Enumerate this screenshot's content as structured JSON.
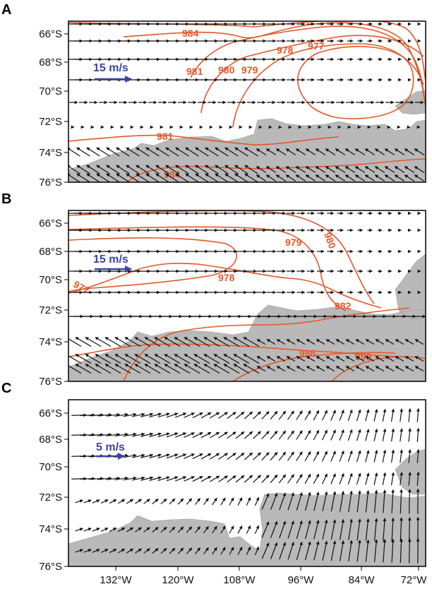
{
  "figure": {
    "colors": {
      "land": "#b9b9b9",
      "contour": "#e4572a",
      "reference_arrow": "#3a44a6",
      "wind_arrow": "#111111"
    },
    "lon_ticks": [
      "132°W",
      "120°W",
      "108°W",
      "96°W",
      "84°W",
      "72°W"
    ],
    "lat_ticks": [
      "66°S",
      "68°S",
      "70°S",
      "72°S",
      "74°S",
      "76°S"
    ],
    "panels": [
      {
        "label": "A",
        "reference_arrow": "15 m/s",
        "contour_labels": [
          "984",
          "981",
          "980",
          "979",
          "978",
          "977",
          "981",
          "984"
        ]
      },
      {
        "label": "B",
        "reference_arrow": "15 m/s",
        "contour_labels": [
          "979",
          "980",
          "978",
          "977",
          "982",
          "986",
          "990"
        ]
      },
      {
        "label": "C",
        "reference_arrow": "5 m/s",
        "contour_labels": []
      }
    ]
  }
}
